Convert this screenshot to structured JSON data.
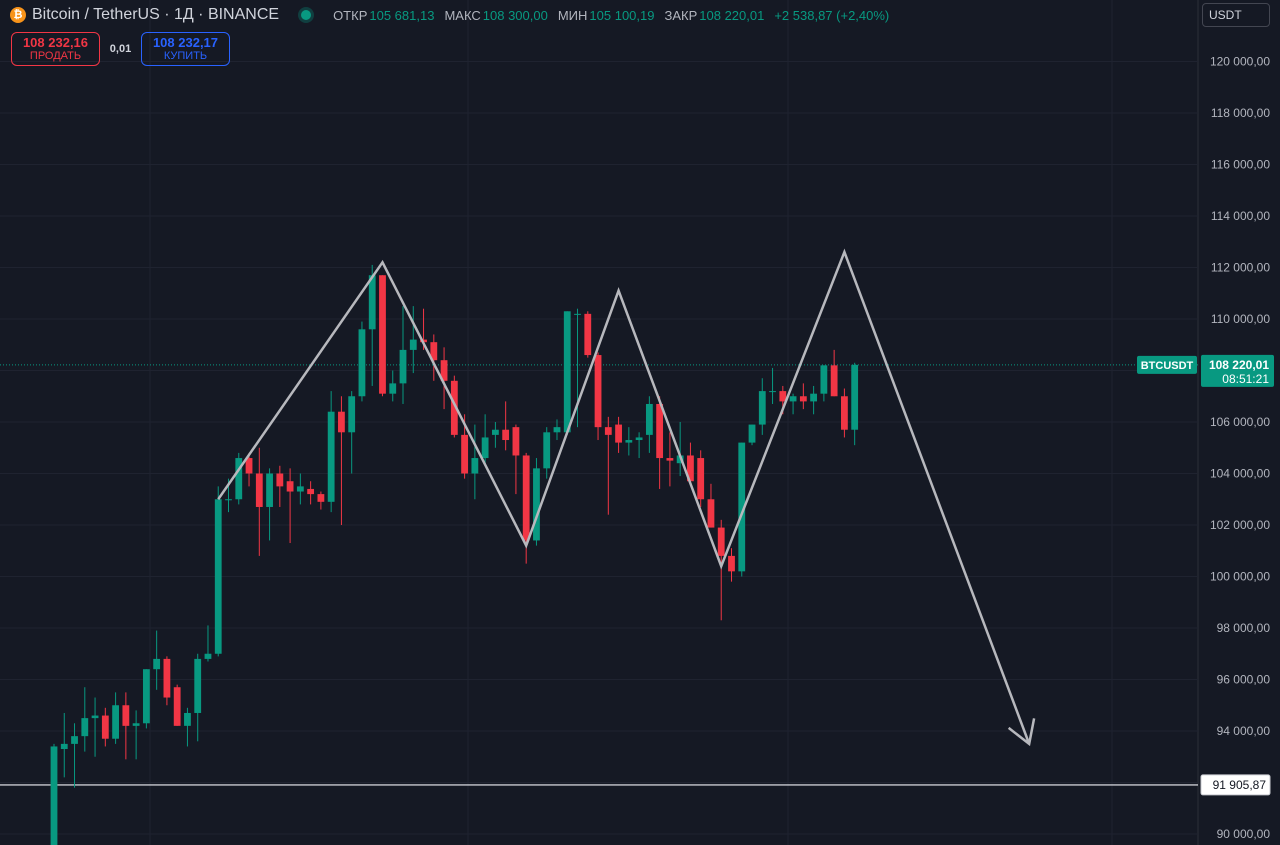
{
  "header": {
    "symbol": "Bitcoin / TetherUS · 1Д · BINANCE",
    "coin_glyph": "₿",
    "ohlc": [
      {
        "label": "ОТКР",
        "value": "105 681,13"
      },
      {
        "label": "МАКС",
        "value": "108 300,00"
      },
      {
        "label": "МИН",
        "value": "105 100,19"
      },
      {
        "label": "ЗАКР",
        "value": "108 220,01"
      }
    ],
    "change": "+2 538,87 (+2,40%)"
  },
  "trade": {
    "sell_price": "108 232,16",
    "sell_label": "ПРОДАТЬ",
    "spread": "0,01",
    "buy_price": "108 232,17",
    "buy_label": "КУПИТЬ"
  },
  "currency_selector": "USDT",
  "colors": {
    "background": "#151924",
    "up": "#089981",
    "down": "#f23645",
    "grid": "#1f2330",
    "axis_text": "#b2b5be",
    "pattern": "#b7b8bd"
  },
  "chart_data": {
    "type": "candlestick",
    "ylim": [
      89600,
      121600
    ],
    "y_ticks": [
      90000,
      92000,
      94000,
      96000,
      98000,
      100000,
      102000,
      104000,
      106000,
      108000,
      110000,
      112000,
      114000,
      116000,
      118000,
      120000
    ],
    "y_tick_labels": [
      "90 000,00",
      "92 000,00",
      "94 000,00",
      "96 000,00",
      "98 000,00",
      "100 000,00",
      "102 000,00",
      "104 000,00",
      "106 000,00",
      "108 000,00",
      "110 000,00",
      "112 000,00",
      "114 000,00",
      "116 000,00",
      "118 000,00",
      "120 000,00"
    ],
    "candles": [
      {
        "o": 88400,
        "h": 93500,
        "l": 88000,
        "c": 93400
      },
      {
        "o": 93300,
        "h": 94700,
        "l": 92200,
        "c": 93500
      },
      {
        "o": 93500,
        "h": 94300,
        "l": 91800,
        "c": 93800
      },
      {
        "o": 93800,
        "h": 95700,
        "l": 93200,
        "c": 94500
      },
      {
        "o": 94500,
        "h": 95300,
        "l": 93000,
        "c": 94600
      },
      {
        "o": 94600,
        "h": 94900,
        "l": 93400,
        "c": 93700
      },
      {
        "o": 93700,
        "h": 95500,
        "l": 93500,
        "c": 95000
      },
      {
        "o": 95000,
        "h": 95500,
        "l": 92900,
        "c": 94200
      },
      {
        "o": 94200,
        "h": 94800,
        "l": 92900,
        "c": 94300
      },
      {
        "o": 94300,
        "h": 96400,
        "l": 94100,
        "c": 96400
      },
      {
        "o": 96400,
        "h": 97900,
        "l": 95600,
        "c": 96800
      },
      {
        "o": 96800,
        "h": 96900,
        "l": 95000,
        "c": 95300
      },
      {
        "o": 95700,
        "h": 95800,
        "l": 94200,
        "c": 94200
      },
      {
        "o": 94200,
        "h": 94900,
        "l": 93400,
        "c": 94700
      },
      {
        "o": 94700,
        "h": 97000,
        "l": 93600,
        "c": 96800
      },
      {
        "o": 96800,
        "h": 98100,
        "l": 96700,
        "c": 97000
      },
      {
        "o": 97000,
        "h": 103500,
        "l": 96900,
        "c": 103000
      },
      {
        "o": 103000,
        "h": 103800,
        "l": 102500,
        "c": 103000
      },
      {
        "o": 103000,
        "h": 104800,
        "l": 102800,
        "c": 104600
      },
      {
        "o": 104600,
        "h": 104800,
        "l": 103500,
        "c": 104000
      },
      {
        "o": 104000,
        "h": 105000,
        "l": 100800,
        "c": 102700
      },
      {
        "o": 102700,
        "h": 104200,
        "l": 101400,
        "c": 104000
      },
      {
        "o": 104000,
        "h": 104300,
        "l": 102700,
        "c": 103500
      },
      {
        "o": 103700,
        "h": 104200,
        "l": 101300,
        "c": 103300
      },
      {
        "o": 103300,
        "h": 104000,
        "l": 102800,
        "c": 103500
      },
      {
        "o": 103400,
        "h": 103700,
        "l": 102800,
        "c": 103200
      },
      {
        "o": 103200,
        "h": 103300,
        "l": 102600,
        "c": 102900
      },
      {
        "o": 102900,
        "h": 107200,
        "l": 102500,
        "c": 106400
      },
      {
        "o": 106400,
        "h": 107000,
        "l": 102000,
        "c": 105600
      },
      {
        "o": 105600,
        "h": 107200,
        "l": 104000,
        "c": 107000
      },
      {
        "o": 107000,
        "h": 109900,
        "l": 106800,
        "c": 109600
      },
      {
        "o": 109600,
        "h": 112100,
        "l": 107400,
        "c": 111700
      },
      {
        "o": 111700,
        "h": 111700,
        "l": 107000,
        "c": 107100
      },
      {
        "o": 107100,
        "h": 108000,
        "l": 106800,
        "c": 107500
      },
      {
        "o": 107500,
        "h": 110500,
        "l": 106700,
        "c": 108800
      },
      {
        "o": 108800,
        "h": 110500,
        "l": 107900,
        "c": 109200
      },
      {
        "o": 109200,
        "h": 110400,
        "l": 108800,
        "c": 109100
      },
      {
        "o": 109100,
        "h": 109400,
        "l": 107600,
        "c": 108400
      },
      {
        "o": 108400,
        "h": 108900,
        "l": 106500,
        "c": 107600
      },
      {
        "o": 107600,
        "h": 107800,
        "l": 105400,
        "c": 105500
      },
      {
        "o": 105500,
        "h": 106300,
        "l": 103800,
        "c": 104000
      },
      {
        "o": 104000,
        "h": 105900,
        "l": 103000,
        "c": 104600
      },
      {
        "o": 104600,
        "h": 106300,
        "l": 104300,
        "c": 105400
      },
      {
        "o": 105500,
        "h": 106000,
        "l": 105000,
        "c": 105700
      },
      {
        "o": 105700,
        "h": 106800,
        "l": 104900,
        "c": 105300
      },
      {
        "o": 105800,
        "h": 105900,
        "l": 103200,
        "c": 104700
      },
      {
        "o": 104700,
        "h": 104800,
        "l": 100500,
        "c": 101400
      },
      {
        "o": 101400,
        "h": 104600,
        "l": 101200,
        "c": 104200
      },
      {
        "o": 104200,
        "h": 105800,
        "l": 103800,
        "c": 105600
      },
      {
        "o": 105600,
        "h": 106100,
        "l": 105300,
        "c": 105800
      },
      {
        "o": 105600,
        "h": 110300,
        "l": 105500,
        "c": 110300
      },
      {
        "o": 110200,
        "h": 110400,
        "l": 105800,
        "c": 110200
      },
      {
        "o": 110200,
        "h": 110300,
        "l": 108500,
        "c": 108600
      },
      {
        "o": 108600,
        "h": 108700,
        "l": 105300,
        "c": 105800
      },
      {
        "o": 105800,
        "h": 106200,
        "l": 102400,
        "c": 105500
      },
      {
        "o": 105900,
        "h": 106200,
        "l": 104800,
        "c": 105200
      },
      {
        "o": 105200,
        "h": 105800,
        "l": 104700,
        "c": 105300
      },
      {
        "o": 105300,
        "h": 105600,
        "l": 104600,
        "c": 105400
      },
      {
        "o": 105500,
        "h": 107000,
        "l": 104800,
        "c": 106700
      },
      {
        "o": 106700,
        "h": 107000,
        "l": 103400,
        "c": 104600
      },
      {
        "o": 104600,
        "h": 105600,
        "l": 103500,
        "c": 104500
      },
      {
        "o": 104400,
        "h": 106000,
        "l": 103900,
        "c": 104700
      },
      {
        "o": 104700,
        "h": 105200,
        "l": 103600,
        "c": 103700
      },
      {
        "o": 104600,
        "h": 104900,
        "l": 102700,
        "c": 103000
      },
      {
        "o": 103000,
        "h": 103600,
        "l": 101900,
        "c": 101900
      },
      {
        "o": 101900,
        "h": 102200,
        "l": 98300,
        "c": 100800
      },
      {
        "o": 100800,
        "h": 101100,
        "l": 99800,
        "c": 100200
      },
      {
        "o": 100200,
        "h": 105200,
        "l": 100000,
        "c": 105200
      },
      {
        "o": 105200,
        "h": 105900,
        "l": 105100,
        "c": 105900
      },
      {
        "o": 105900,
        "h": 107700,
        "l": 105500,
        "c": 107200
      },
      {
        "o": 107200,
        "h": 108100,
        "l": 106700,
        "c": 107200
      },
      {
        "o": 107200,
        "h": 107400,
        "l": 106300,
        "c": 106800
      },
      {
        "o": 106800,
        "h": 107100,
        "l": 106300,
        "c": 107000
      },
      {
        "o": 107000,
        "h": 107500,
        "l": 106500,
        "c": 106800
      },
      {
        "o": 106800,
        "h": 107400,
        "l": 106300,
        "c": 107100
      },
      {
        "o": 107100,
        "h": 108200,
        "l": 106800,
        "c": 108200
      },
      {
        "o": 108200,
        "h": 108800,
        "l": 107000,
        "c": 107000
      },
      {
        "o": 107000,
        "h": 107300,
        "l": 105400,
        "c": 105700
      },
      {
        "o": 105700,
        "h": 108300,
        "l": 105100,
        "c": 108220
      }
    ],
    "pattern_points": [
      {
        "index": 16,
        "value": 103000
      },
      {
        "index": 32,
        "value": 112200
      },
      {
        "index": 46,
        "value": 101200
      },
      {
        "index": 55,
        "value": 111100
      },
      {
        "index": 65,
        "value": 100400
      },
      {
        "index": 77,
        "value": 112600
      },
      {
        "index": 95,
        "value": 93500
      }
    ],
    "current_price": {
      "label": "BTCUSDT",
      "value": 108220.01,
      "value_label": "108 220,01",
      "countdown": "08:51:21"
    },
    "horizontal_line": {
      "value": 91905.87,
      "label": "91 905,87"
    }
  }
}
